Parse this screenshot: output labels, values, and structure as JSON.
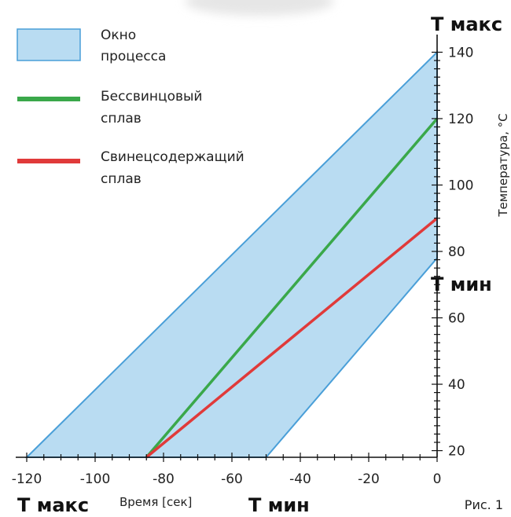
{
  "chart_data": {
    "type": "line",
    "title": "",
    "xlabel": "Время [сек]",
    "ylabel": "Температура, °C",
    "xlim": [
      -120,
      0
    ],
    "ylim": [
      18,
      142
    ],
    "x_ticks": [
      -120,
      -100,
      -80,
      -60,
      -40,
      -20,
      0
    ],
    "y_ticks": [
      20,
      40,
      60,
      80,
      100,
      120,
      140
    ],
    "grid": false,
    "legend_position": "top-left",
    "process_window": {
      "name": "Окно процесса",
      "color_fill": "#b9dcf2",
      "color_stroke": "#4a9fd8",
      "polygon": [
        [
          -120,
          18
        ],
        [
          0,
          140
        ],
        [
          0,
          78
        ],
        [
          -50,
          18
        ]
      ]
    },
    "series": [
      {
        "name": "Бессвинцовый сплав",
        "color": "#3aa84a",
        "points": [
          [
            -85,
            18
          ],
          [
            0,
            120
          ]
        ]
      },
      {
        "name": "Свинецсодержащий сплав",
        "color": "#e03a3a",
        "points": [
          [
            -85,
            18
          ],
          [
            0,
            90
          ]
        ]
      }
    ],
    "legend": [
      {
        "line1": "Окно",
        "line2": "процесса",
        "kind": "box"
      },
      {
        "line1": "Бессвинцовый",
        "line2": "сплав",
        "kind": "green-line"
      },
      {
        "line1": "Свинецсодержащий",
        "line2": "сплав",
        "kind": "red-line"
      }
    ],
    "annotations": {
      "y_max": "T макс",
      "y_min": "T мин",
      "x_max": "T макс",
      "x_min": "T мин"
    },
    "figure_label": "Рис. 1"
  }
}
